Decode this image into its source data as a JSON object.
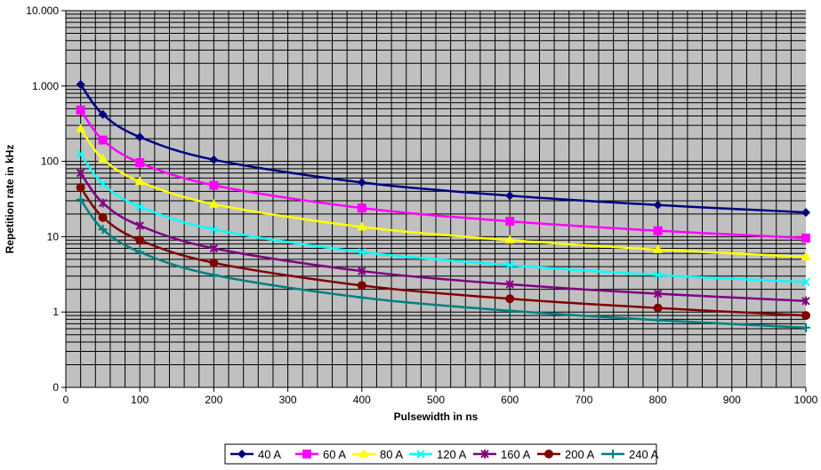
{
  "chart_data": {
    "type": "line",
    "title": "",
    "xlabel": "Pulsewidth in ns",
    "ylabel": "Repetition rate in kHz",
    "xlim": [
      0,
      1000
    ],
    "ylim": [
      0.1,
      10000
    ],
    "yscale": "log",
    "grid": true,
    "legend": "bottom",
    "background": "#c0c0c0",
    "x_ticks": [
      "0",
      "100",
      "200",
      "300",
      "400",
      "500",
      "600",
      "700",
      "800",
      "900",
      "1000"
    ],
    "y_ticks": [
      {
        "v": 0.1,
        "label": "0"
      },
      {
        "v": 1,
        "label": "1"
      },
      {
        "v": 10,
        "label": "10"
      },
      {
        "v": 100,
        "label": "100"
      },
      {
        "v": 1000,
        "label": "1.000"
      },
      {
        "v": 10000,
        "label": "10.000"
      }
    ],
    "x": [
      20,
      50,
      100,
      200,
      400,
      600,
      800,
      1000
    ],
    "series": [
      {
        "name": "40 A",
        "color": "#000080",
        "marker": "diamond",
        "values": [
          1050,
          420,
          210,
          105,
          52.5,
          35,
          26.3,
          21
        ]
      },
      {
        "name": "60 A",
        "color": "#ff00ff",
        "marker": "square",
        "values": [
          480,
          192,
          96,
          48,
          24,
          16,
          12,
          9.6
        ]
      },
      {
        "name": "80 A",
        "color": "#ffff00",
        "marker": "triangle",
        "values": [
          270,
          108,
          54,
          27,
          13.5,
          9,
          6.75,
          5.4
        ]
      },
      {
        "name": "120 A",
        "color": "#00ffff",
        "marker": "x",
        "values": [
          125,
          50,
          25,
          12.5,
          6.25,
          4.2,
          3.1,
          2.5
        ]
      },
      {
        "name": "160 A",
        "color": "#800080",
        "marker": "star",
        "values": [
          70,
          28,
          14,
          7,
          3.5,
          2.33,
          1.75,
          1.4
        ]
      },
      {
        "name": "200 A",
        "color": "#800000",
        "marker": "circle",
        "values": [
          45,
          18,
          9,
          4.5,
          2.25,
          1.5,
          1.13,
          0.9
        ]
      },
      {
        "name": "240 A",
        "color": "#008080",
        "marker": "plus",
        "values": [
          31,
          12.5,
          6.25,
          3.1,
          1.56,
          1.04,
          0.78,
          0.62
        ]
      }
    ]
  }
}
